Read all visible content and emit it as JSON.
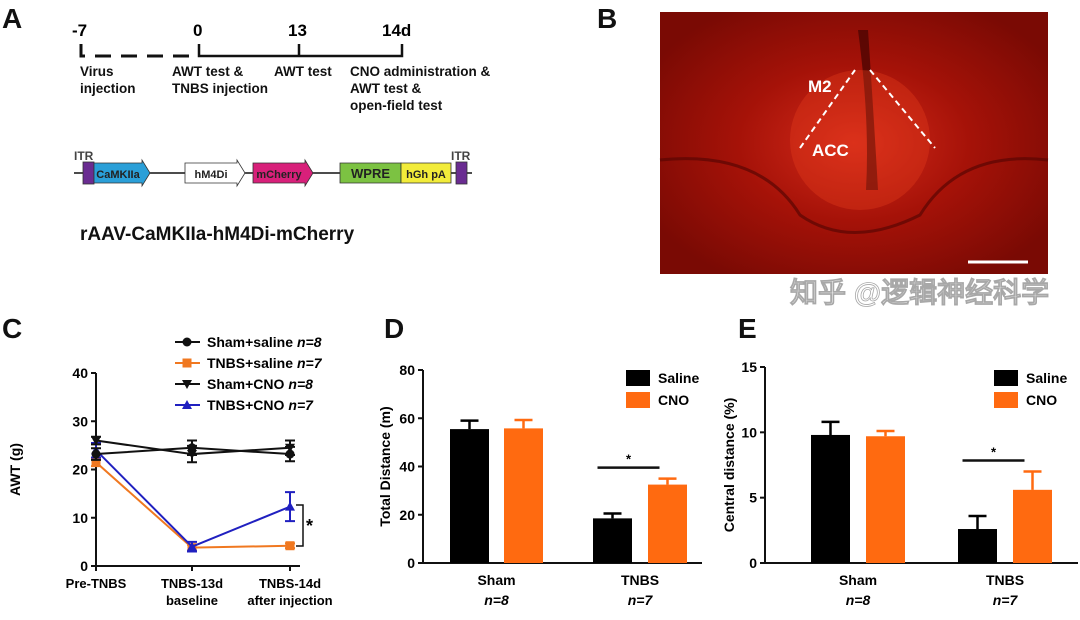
{
  "panels": {
    "A": "A",
    "B": "B",
    "C": "C",
    "D": "D",
    "E": "E"
  },
  "timeline": {
    "ticks": [
      "-7",
      "0",
      "13",
      "14d"
    ],
    "events": [
      [
        "Virus",
        "injection"
      ],
      [
        "AWT test &",
        "TNBS injection"
      ],
      [
        "AWT test"
      ],
      [
        "CNO administration &",
        "AWT test &",
        "open-field test"
      ]
    ]
  },
  "construct": {
    "itr_left": "ITR",
    "itr_right": "ITR",
    "elements": [
      {
        "label": "CaMKIIa",
        "color": "#2a9fd8"
      },
      {
        "label": "hM4Di",
        "color": "#ffffff"
      },
      {
        "label": "mCherry",
        "color": "#d8207a"
      },
      {
        "label": "WPRE",
        "color": "#7cc242"
      },
      {
        "label": "hGh pA",
        "color": "#f2ec3a"
      }
    ],
    "itr_color": "#6a2c91",
    "name": "rAAV-CaMKIIa-hM4Di-mCherry"
  },
  "histology": {
    "labels": [
      "M2",
      "ACC"
    ],
    "color": "#b01010"
  },
  "watermark": "知乎 @逻辑神经科学",
  "chart_data": [
    {
      "panel": "C",
      "type": "line",
      "ylabel": "AWT (g)",
      "ylim": [
        0,
        40
      ],
      "yticks": [
        "0",
        "10",
        "20",
        "30",
        "40"
      ],
      "categories": [
        [
          "Pre-TNBS"
        ],
        [
          "TNBS-13d",
          "baseline"
        ],
        [
          "TNBS-14d",
          "after injection"
        ]
      ],
      "legend_position": "top-right",
      "series": [
        {
          "name": "Sham+saline",
          "n": "n=8",
          "marker": "circle",
          "color": "#111111",
          "values": [
            23.2,
            24.5,
            23.2
          ],
          "errors": [
            1.2,
            1.5,
            1.5
          ]
        },
        {
          "name": "TNBS+saline",
          "n": "n=7",
          "marker": "square",
          "color": "#f07820",
          "values": [
            21.5,
            3.8,
            4.2
          ],
          "errors": [
            0.8,
            0.6,
            0.5
          ]
        },
        {
          "name": "Sham+CNO",
          "n": "n=8",
          "marker": "triangle-down",
          "color": "#111111",
          "values": [
            26,
            23.2,
            24.5
          ],
          "errors": [
            0.8,
            1.7,
            1.5
          ]
        },
        {
          "name": "TNBS+CNO",
          "n": "n=7",
          "marker": "triangle-up",
          "color": "#2020c0",
          "values": [
            24,
            4,
            12.3
          ],
          "errors": [
            1.5,
            1,
            3
          ]
        }
      ],
      "annotation": "*"
    },
    {
      "panel": "D",
      "type": "bar",
      "ylabel": "Total Distance (m)",
      "ylim": [
        0,
        80
      ],
      "yticks": [
        "0",
        "20",
        "40",
        "60",
        "80"
      ],
      "categories": [
        "Sham",
        "TNBS"
      ],
      "category_n": [
        "n=8",
        "n=7"
      ],
      "legend_position": "top-right",
      "series": [
        {
          "name": "Saline",
          "color": "#000000",
          "values": [
            55.5,
            18.5
          ],
          "errors": [
            3.5,
            2
          ]
        },
        {
          "name": "CNO",
          "color": "#ff6a10",
          "values": [
            55.8,
            32.5
          ],
          "errors": [
            3.5,
            2.5
          ]
        }
      ],
      "annotation": "*"
    },
    {
      "panel": "E",
      "type": "bar",
      "ylabel": "Central distance (%)",
      "ylim": [
        0,
        15
      ],
      "yticks": [
        "0",
        "5",
        "10",
        "15"
      ],
      "categories": [
        "Sham",
        "TNBS"
      ],
      "category_n": [
        "n=8",
        "n=7"
      ],
      "legend_position": "top-right",
      "series": [
        {
          "name": "Saline",
          "color": "#000000",
          "values": [
            9.8,
            2.6
          ],
          "errors": [
            1,
            1
          ]
        },
        {
          "name": "CNO",
          "color": "#ff6a10",
          "values": [
            9.7,
            5.6
          ],
          "errors": [
            0.4,
            1.4
          ]
        }
      ],
      "annotation": "*"
    }
  ]
}
